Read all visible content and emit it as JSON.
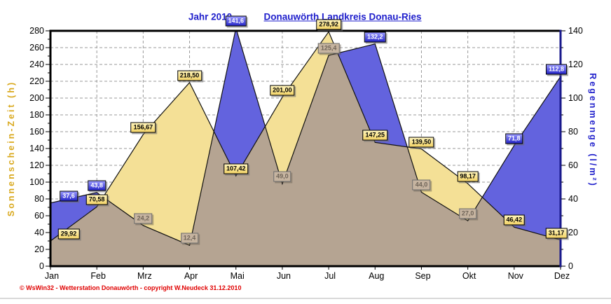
{
  "window": {
    "footer": "© WsWin32  -  Wetterstation Donauwörth  -  copyright W.Neudeck  31.12.2010"
  },
  "chart_data": {
    "type": "area",
    "titles": {
      "year": "Jahr  2010",
      "station": "Donauwörth Landkreis Donau-Ries"
    },
    "categories": [
      "Jan",
      "Feb",
      "Mrz",
      "Apr",
      "Mai",
      "Jun",
      "Jul",
      "Aug",
      "Sep",
      "Okt",
      "Nov",
      "Dez"
    ],
    "series": [
      {
        "name": "Sonnenschein-Zeit (h)",
        "axis": "left",
        "color_fill": "#f4e096",
        "values": [
          29.92,
          70.58,
          156.67,
          218.5,
          107.42,
          201.0,
          278.92,
          147.25,
          139.5,
          98.17,
          46.42,
          31.17
        ],
        "labels": [
          "29,92",
          "70,58",
          "156,67",
          "218,50",
          "107,42",
          "201,00",
          "278,92",
          "147,25",
          "139,50",
          "98,17",
          "46,42",
          "31,17"
        ]
      },
      {
        "name": "Regenmenge (l/m²)",
        "axis": "right",
        "color_fill": "#6363de",
        "values": [
          37.6,
          43.8,
          24.2,
          12.4,
          141.6,
          49.0,
          125.4,
          132.2,
          44.0,
          27.0,
          71.8,
          112.8
        ],
        "labels": [
          "37,6",
          "43,8",
          "24,2",
          "12,4",
          "141,6",
          "49,0",
          "125,4",
          "132,2",
          "44,0",
          "27,0",
          "71,8",
          "112,8"
        ],
        "muted": [
          false,
          false,
          true,
          true,
          false,
          true,
          true,
          false,
          true,
          true,
          false,
          false
        ]
      }
    ],
    "left_axis": {
      "label": "Sonnenschein-Zeit  (h)",
      "min": 0,
      "max": 280,
      "step": 20,
      "color": "#d9a81c"
    },
    "right_axis": {
      "label": "Regenmenge  (l/m²)",
      "min": 0,
      "max": 140,
      "step": 20,
      "color": "#2222cc"
    },
    "overlap_color": "#b5a492",
    "grid": true,
    "legend_position": "none"
  }
}
